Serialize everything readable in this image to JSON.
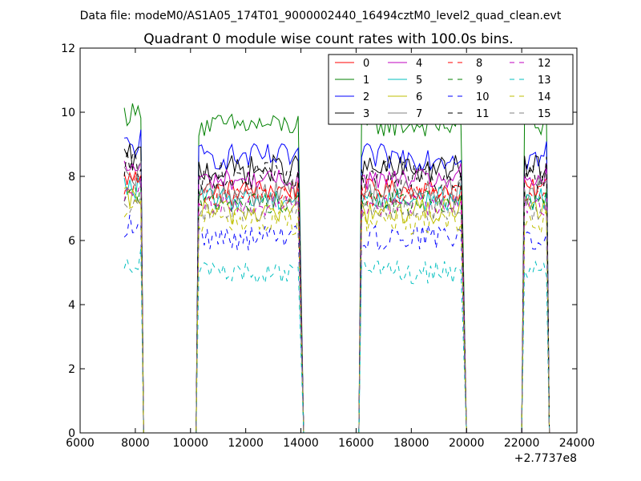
{
  "suptitle": "Data file: modeM0/AS1A05_174T01_9000002440_16494cztM0_level2_quad_clean.evt",
  "chart_data": {
    "type": "line",
    "title": "Quadrant 0 module wise count rates with 100.0s bins.",
    "xlabel": "",
    "ylabel": "",
    "xlim": [
      6000,
      24000
    ],
    "ylim": [
      0,
      12
    ],
    "x_ticks": [
      "6000",
      "8000",
      "10000",
      "12000",
      "14000",
      "16000",
      "18000",
      "20000",
      "22000",
      "24000"
    ],
    "y_ticks": [
      "0",
      "2",
      "4",
      "6",
      "8",
      "10",
      "12"
    ],
    "x_offset_label": "+2.7737e8",
    "grid": false,
    "legend_placement": "top-right",
    "legend_columns": 4,
    "segments": [
      {
        "start": 7600,
        "end": 8200,
        "drop_end": 8300
      },
      {
        "start": 10300,
        "end": 13900,
        "drop_start": 10200,
        "drop_end": 14100
      },
      {
        "start": 16200,
        "end": 19800,
        "drop_start": 16100,
        "drop_end": 20000
      },
      {
        "start": 22100,
        "end": 22900,
        "drop_start": 22000,
        "drop_end": 23000
      }
    ],
    "series": [
      {
        "name": "0",
        "color": "#ff0000",
        "dash": "solid",
        "level": 7.6
      },
      {
        "name": "1",
        "color": "#008000",
        "dash": "solid",
        "level": 9.6
      },
      {
        "name": "2",
        "color": "#0000ff",
        "dash": "solid",
        "level": 8.6
      },
      {
        "name": "3",
        "color": "#000000",
        "dash": "solid",
        "level": 8.2
      },
      {
        "name": "4",
        "color": "#bf00bf",
        "dash": "solid",
        "level": 7.9
      },
      {
        "name": "5",
        "color": "#00bfbf",
        "dash": "solid",
        "level": 7.3
      },
      {
        "name": "6",
        "color": "#bfbf00",
        "dash": "solid",
        "level": 6.9
      },
      {
        "name": "7",
        "color": "#808080",
        "dash": "solid",
        "level": 7.5
      },
      {
        "name": "8",
        "color": "#ff0000",
        "dash": "dashed",
        "level": 7.4
      },
      {
        "name": "9",
        "color": "#008000",
        "dash": "dashed",
        "level": 7.2
      },
      {
        "name": "10",
        "color": "#0000ff",
        "dash": "dashed",
        "level": 6.1
      },
      {
        "name": "11",
        "color": "#000000",
        "dash": "dashed",
        "level": 8.0
      },
      {
        "name": "12",
        "color": "#bf00bf",
        "dash": "dashed",
        "level": 7.1
      },
      {
        "name": "13",
        "color": "#00bfbf",
        "dash": "dashed",
        "level": 5.0
      },
      {
        "name": "14",
        "color": "#bfbf00",
        "dash": "dashed",
        "level": 6.6
      },
      {
        "name": "15",
        "color": "#808080",
        "dash": "dashed",
        "level": 7.0
      }
    ]
  }
}
